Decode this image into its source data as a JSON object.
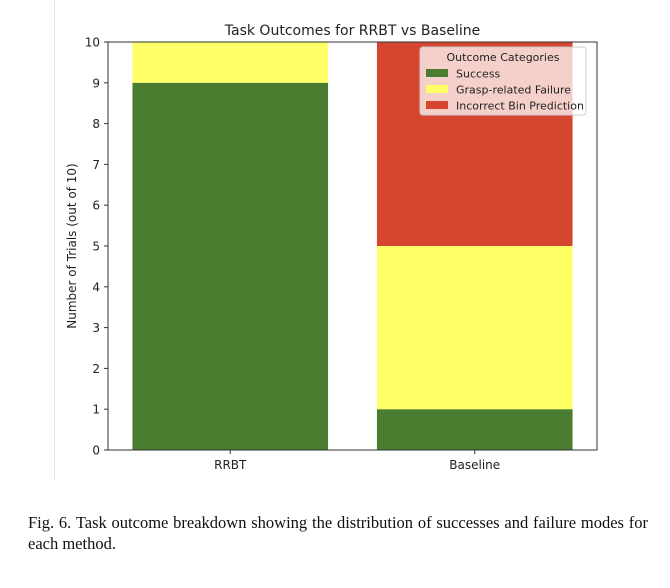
{
  "chart_data": {
    "type": "bar",
    "stacked": true,
    "title": "Task Outcomes for RRBT vs Baseline",
    "xlabel": "",
    "ylabel": "Number of Trials (out of 10)",
    "categories": [
      "RRBT",
      "Baseline"
    ],
    "ylim": [
      0,
      10
    ],
    "yticks": [
      0,
      1,
      2,
      3,
      4,
      5,
      6,
      7,
      8,
      9,
      10
    ],
    "grid": false,
    "legend": {
      "title": "Outcome Categories",
      "placement": "top-right"
    },
    "series": [
      {
        "name": "Success",
        "values": [
          9,
          1
        ],
        "color": "#4a7d2f"
      },
      {
        "name": "Grasp-related Failure",
        "values": [
          1,
          4
        ],
        "color": "#ffff66"
      },
      {
        "name": "Incorrect Bin Prediction",
        "values": [
          0,
          5
        ],
        "color": "#d64530"
      }
    ]
  },
  "caption": "Fig. 6.  Task outcome breakdown showing the distribution of successes and failure modes for each method."
}
